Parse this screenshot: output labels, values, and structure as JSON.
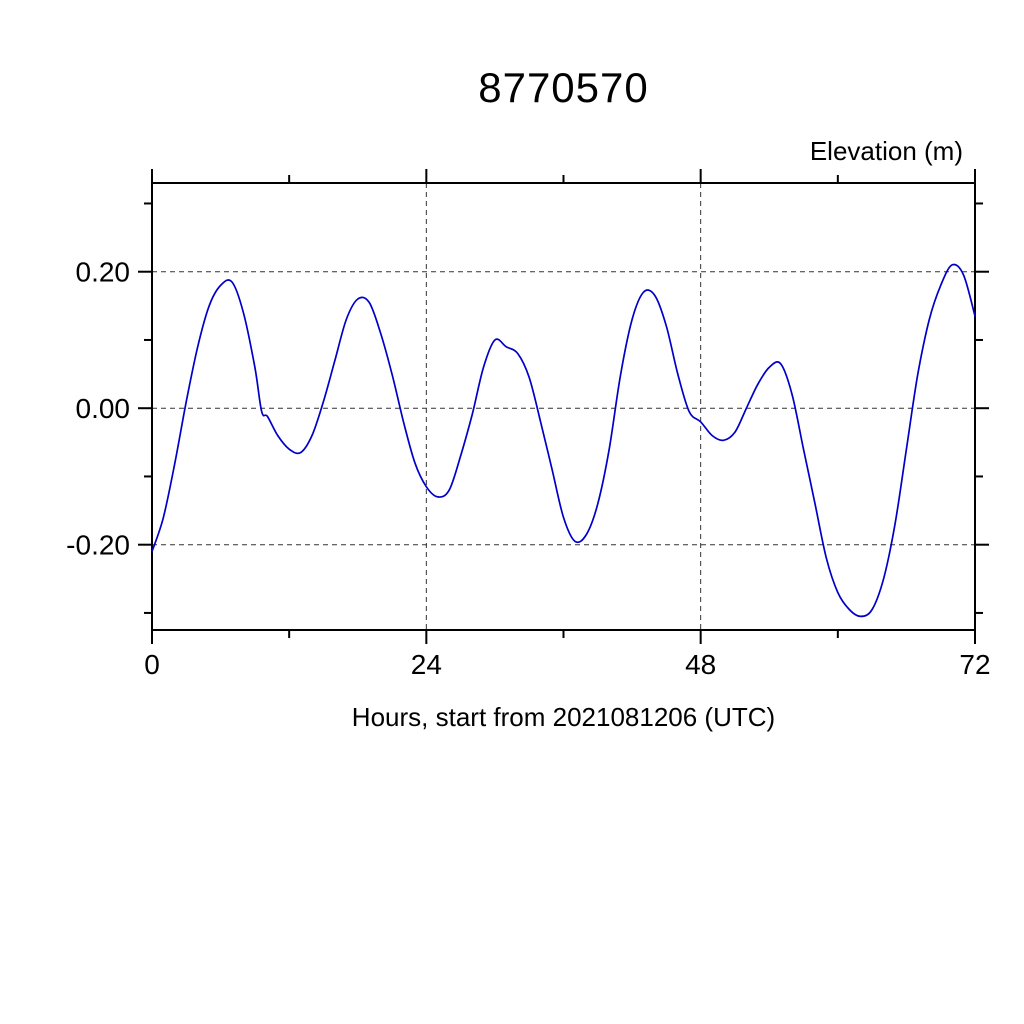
{
  "title": "8770570",
  "ylabel": "Elevation (m)",
  "xlabel": "Hours, start from 2021081206 (UTC)",
  "chart_data": {
    "type": "line",
    "title": "8770570",
    "ylabel": "Elevation (m)",
    "xlabel": "Hours, start from 2021081206 (UTC)",
    "xlim": [
      0,
      72
    ],
    "ylim": [
      -0.325,
      0.33
    ],
    "xticks_major": [
      0,
      24,
      48,
      72
    ],
    "xtick_labels": [
      "0",
      "24",
      "48",
      "72"
    ],
    "xticks_minor": [
      12,
      36,
      60
    ],
    "yticks_major": [
      0.2,
      0.0,
      -0.2
    ],
    "ytick_labels": [
      "0.20",
      "0.00",
      "-0.20"
    ],
    "yticks_minor": [
      0.3,
      0.1,
      -0.1,
      -0.3
    ],
    "grid_x": [
      24,
      48
    ],
    "grid_y": [
      0.2,
      0.0,
      -0.2
    ],
    "grid_style": "dashed",
    "legend": "none",
    "line_color": "#0000c8",
    "series": [
      {
        "name": "elevation_m",
        "x": [
          0,
          1,
          2,
          3,
          4,
          5,
          6,
          7,
          8,
          9,
          9.6,
          10.1,
          11,
          12,
          13,
          14,
          15,
          16,
          17,
          18,
          19,
          20,
          21,
          22,
          23,
          24,
          25,
          26,
          27,
          28,
          29,
          30,
          31,
          32,
          33,
          34,
          35,
          36,
          37,
          38,
          39,
          40,
          41,
          42,
          43,
          44,
          45,
          46,
          47,
          48,
          49,
          50,
          51,
          52,
          53,
          54,
          55,
          56,
          57,
          58,
          59,
          60,
          61,
          62,
          63,
          64,
          65,
          66,
          67,
          68,
          69,
          70,
          71,
          72
        ],
        "y": [
          -0.21,
          -0.16,
          -0.08,
          0.01,
          0.09,
          0.15,
          0.18,
          0.185,
          0.14,
          0.06,
          -0.005,
          -0.012,
          -0.04,
          -0.06,
          -0.065,
          -0.04,
          0.01,
          0.07,
          0.13,
          0.16,
          0.155,
          0.11,
          0.05,
          -0.02,
          -0.08,
          -0.115,
          -0.13,
          -0.12,
          -0.07,
          -0.01,
          0.06,
          0.1,
          0.09,
          0.08,
          0.045,
          -0.02,
          -0.09,
          -0.16,
          -0.195,
          -0.185,
          -0.14,
          -0.06,
          0.05,
          0.13,
          0.17,
          0.165,
          0.12,
          0.05,
          -0.005,
          -0.02,
          -0.04,
          -0.047,
          -0.035,
          0.0,
          0.035,
          0.06,
          0.065,
          0.02,
          -0.06,
          -0.14,
          -0.22,
          -0.27,
          -0.295,
          -0.305,
          -0.295,
          -0.25,
          -0.17,
          -0.06,
          0.05,
          0.13,
          0.18,
          0.21,
          0.195,
          0.135
        ]
      }
    ]
  }
}
